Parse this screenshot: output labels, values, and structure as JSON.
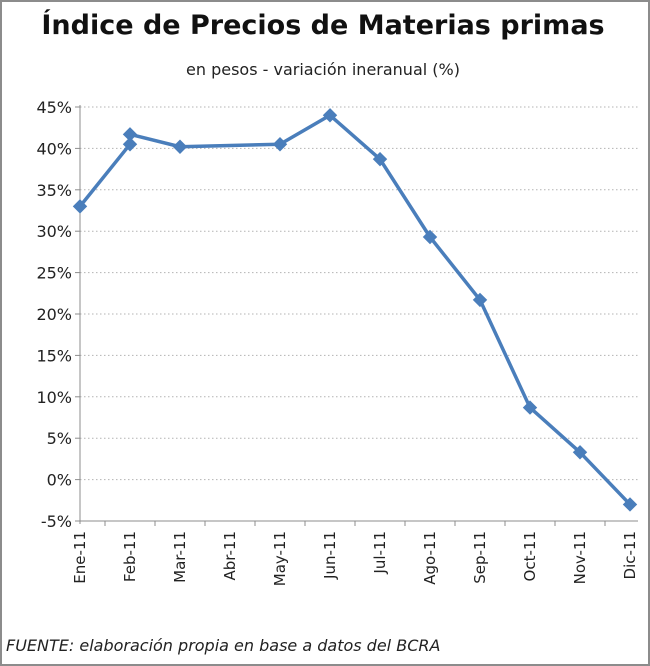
{
  "chart_data": {
    "type": "line",
    "title": "Índice de Precios de Materias primas",
    "subtitle": "en pesos - variación ineranual (%)",
    "source": "FUENTE: elaboración propia en base a datos del BCRA",
    "categories": [
      "Ene-11",
      "Feb-11",
      "Mar-11",
      "Abr-11",
      "May-11",
      "Jun-11",
      "Jul-11",
      "Ago-11",
      "Sep-11",
      "Oct-11",
      "Nov-11",
      "Dic-11"
    ],
    "y_ticks": [
      "45%",
      "40%",
      "35%",
      "30%",
      "25%",
      "20%",
      "15%",
      "10%",
      "5%",
      "0%",
      "-5%"
    ],
    "ylim": [
      -5,
      45
    ],
    "grid": true,
    "series": [
      {
        "points": [
          {
            "x": "Ene-11",
            "y": 33.0
          },
          {
            "x": "Feb-11",
            "y": 40.5
          },
          {
            "x": "Feb-11",
            "y": 41.7
          },
          {
            "x": "Mar-11",
            "y": 40.2
          },
          {
            "x": "May-11",
            "y": 40.5
          },
          {
            "x": "Jun-11",
            "y": 44.0
          },
          {
            "x": "Jul-11",
            "y": 38.7
          },
          {
            "x": "Ago-11",
            "y": 29.3
          },
          {
            "x": "Sep-11",
            "y": 21.7
          },
          {
            "x": "Oct-11",
            "y": 8.7
          },
          {
            "x": "Nov-11",
            "y": 3.3
          },
          {
            "x": "Dic-11",
            "y": -3.0
          }
        ]
      }
    ],
    "colors": {
      "line": "#4a7ebb",
      "marker": "#4a7ebb",
      "grid": "#b3b3b3",
      "axis": "#8c8c8c"
    }
  }
}
